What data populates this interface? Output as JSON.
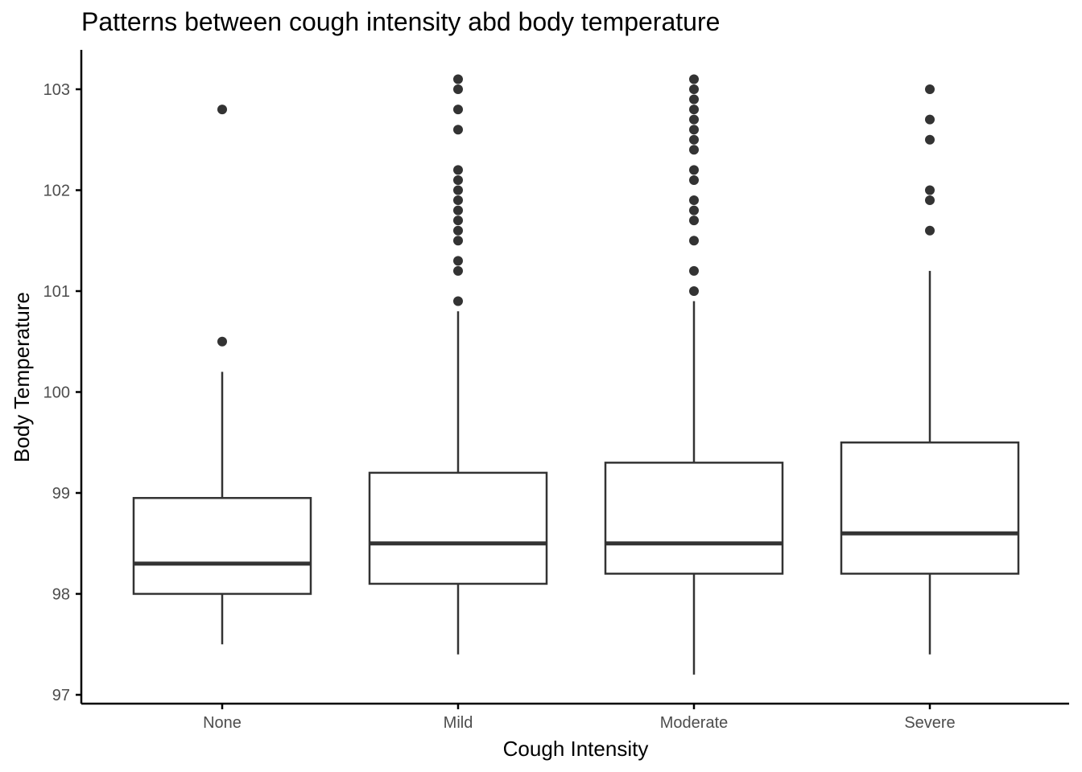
{
  "chart_data": {
    "type": "boxplot",
    "title": "Patterns between cough intensity abd body temperature",
    "xlabel": "Cough Intensity",
    "ylabel": "Body Temperature",
    "ylim": [
      96.9,
      103.4
    ],
    "yticks": [
      97,
      98,
      99,
      100,
      101,
      102,
      103
    ],
    "grid": false,
    "categories": [
      "None",
      "Mild",
      "Moderate",
      "Severe"
    ],
    "boxes": [
      {
        "category": "None",
        "whisker_low": 97.5,
        "q1": 98.0,
        "median": 98.3,
        "q3": 98.95,
        "whisker_high": 100.2,
        "outliers": [
          100.5,
          102.8
        ]
      },
      {
        "category": "Mild",
        "whisker_low": 97.4,
        "q1": 98.1,
        "median": 98.5,
        "q3": 99.2,
        "whisker_high": 100.8,
        "outliers": [
          100.9,
          101.2,
          101.3,
          101.5,
          101.6,
          101.7,
          101.8,
          101.9,
          102.0,
          102.1,
          102.2,
          102.6,
          102.8,
          103.0,
          103.1
        ]
      },
      {
        "category": "Moderate",
        "whisker_low": 97.2,
        "q1": 98.2,
        "median": 98.5,
        "q3": 99.3,
        "whisker_high": 100.9,
        "outliers": [
          101.0,
          101.2,
          101.5,
          101.7,
          101.8,
          101.9,
          102.1,
          102.2,
          102.4,
          102.5,
          102.6,
          102.7,
          102.8,
          102.9,
          103.0,
          103.1
        ]
      },
      {
        "category": "Severe",
        "whisker_low": 97.4,
        "q1": 98.2,
        "median": 98.6,
        "q3": 99.5,
        "whisker_high": 101.2,
        "outliers": [
          101.6,
          101.9,
          102.0,
          102.5,
          102.7,
          103.0
        ]
      }
    ],
    "colors": {
      "box_stroke": "#333333",
      "outlier": "#333333",
      "axis": "#000000",
      "tick_label": "#4d4d4d"
    }
  }
}
